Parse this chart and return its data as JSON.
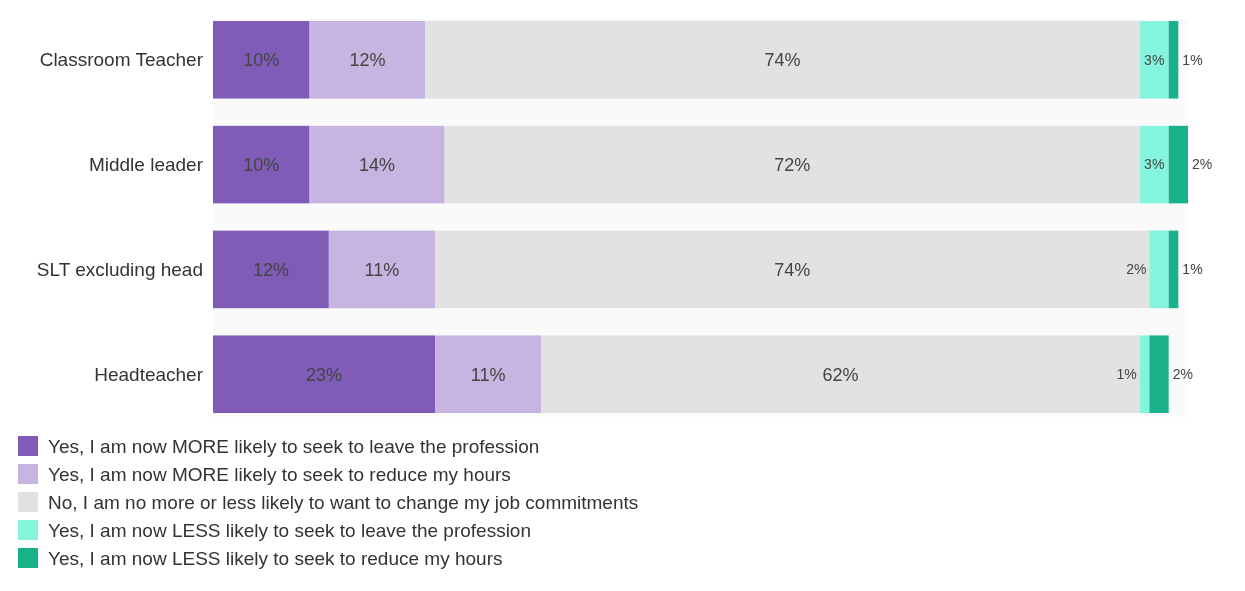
{
  "chart_data": {
    "type": "bar",
    "orientation": "horizontal",
    "stacked": true,
    "legend": "bottom",
    "categories": [
      "Classroom Teacher",
      "Middle leader",
      "SLT excluding head",
      "Headteacher"
    ],
    "series": [
      {
        "name": "Yes, I am now MORE likely to seek to leave the profession",
        "color": "#7e5cb7",
        "values": [
          10,
          10,
          12,
          23
        ],
        "value_labels": [
          "10%",
          "10%",
          "12%",
          "23%"
        ]
      },
      {
        "name": "Yes, I am now MORE likely to seek to reduce my hours",
        "color": "#c5b5e0",
        "values": [
          12,
          14,
          11,
          11
        ],
        "value_labels": [
          "12%",
          "14%",
          "11%",
          "11%"
        ]
      },
      {
        "name": "No, I am no more or less likely to want to change my job commitments",
        "color": "#e2e2e2",
        "values": [
          74,
          72,
          74,
          62
        ],
        "value_labels": [
          "74%",
          "72%",
          "74%",
          "62%"
        ]
      },
      {
        "name": "Yes, I am now LESS likely to seek to leave the profession",
        "color": "#84f5dc",
        "values": [
          3,
          3,
          2,
          1
        ],
        "value_labels": [
          "3%",
          "3%",
          "2%",
          "1%"
        ]
      },
      {
        "name": "Yes, I am now LESS likely to seek to reduce my hours",
        "color": "#1ab28a",
        "values": [
          1,
          2,
          1,
          2
        ],
        "value_labels": [
          "1%",
          "2%",
          "1%",
          "2%"
        ]
      }
    ]
  }
}
